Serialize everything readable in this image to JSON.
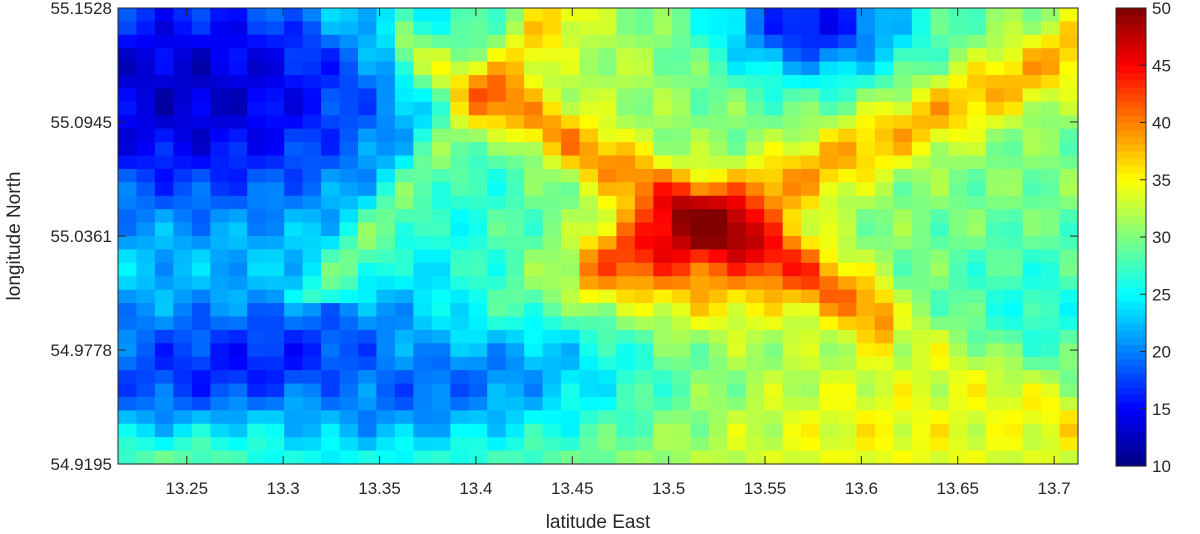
{
  "chart_data": {
    "type": "heatmap",
    "title": "",
    "xlabel": "latitude East",
    "ylabel": "longitude North",
    "xlim": [
      13.2143,
      13.7124
    ],
    "ylim": [
      54.9195,
      55.1528
    ],
    "x_ticks": [
      13.25,
      13.3,
      13.35,
      13.4,
      13.45,
      13.5,
      13.55,
      13.6,
      13.65,
      13.7
    ],
    "x_tick_labels": [
      "13.25",
      "13.3",
      "13.35",
      "13.4",
      "13.45",
      "13.5",
      "13.55",
      "13.6",
      "13.65",
      "13.7"
    ],
    "y_ticks": [
      54.9195,
      54.9778,
      55.0361,
      55.0945,
      55.1528
    ],
    "y_tick_labels": [
      "54.9195",
      "54.9778",
      "55.0361",
      "55.0945",
      "55.1528"
    ],
    "colorbar": {
      "colormap": "jet",
      "range": [
        10,
        50
      ],
      "ticks": [
        10,
        15,
        20,
        25,
        30,
        35,
        40,
        45,
        50
      ],
      "tick_labels": [
        "10",
        "15",
        "20",
        "25",
        "30",
        "35",
        "40",
        "45",
        "50"
      ]
    },
    "grid": false,
    "grid_resolution": {
      "columns": 52,
      "rows": 34
    },
    "description": "Gridded scalar field (approx. 12-48) over a coastal area; low values (~13-20) in the north-west and south-west, high values (~35-48) along diagonal bands crossing near 13.52 E, 55.02 N, a low spot near 13.57 E, 55.145 N, and warm values in the south-east."
  }
}
